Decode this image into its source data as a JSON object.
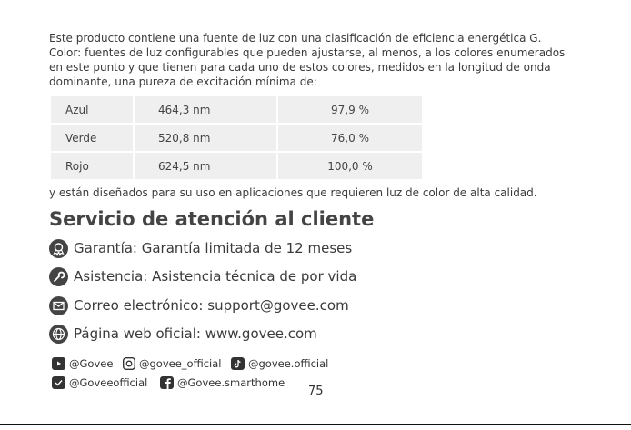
{
  "paragraph": [
    "Este producto contiene una fuente de luz con una clasificación de eficiencia energética G.",
    "Color: fuentes de luz configurables que pueden ajustarse, al menos, a los colores enumerados",
    "en este punto y que tienen para cada uno de estos colores, medidos en la longitud de onda",
    "dominante, una pureza de excitación mínima de:"
  ],
  "table": {
    "rows": [
      [
        "Azul",
        "464,3 nm",
        "97,9 %"
      ],
      [
        "Verde",
        "520,8 nm",
        "76,0 %"
      ],
      [
        "Rojo",
        "624,5 nm",
        "100,0 %"
      ]
    ]
  },
  "after_table": "y están diseñados para su uso en aplicaciones que requieren luz de color de alta calidad.",
  "section": {
    "title": "Servicio de atención al cliente",
    "items": [
      "Garantía: Garantía limitada de 12 meses",
      "Asistencia: Asistencia técnica de por vida",
      "Correo electrónico: support@govee.com",
      "Página web oficial: www.govee.com"
    ]
  },
  "social": [
    "@Govee",
    "@govee_official",
    "@govee.official",
    "@Goveeofficial",
    "@Govee.smarthome"
  ],
  "page_number": "75"
}
